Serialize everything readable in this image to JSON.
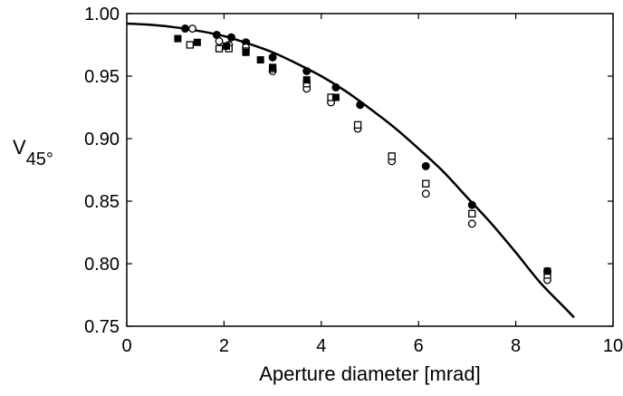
{
  "chart_data": {
    "type": "scatter",
    "xlabel": "Aperture diameter [mrad]",
    "ylabel_main": "V",
    "ylabel_sub": "45°",
    "xlim": [
      0,
      10
    ],
    "ylim": [
      0.75,
      1.0
    ],
    "x_ticks": [
      0,
      2,
      4,
      6,
      8,
      10
    ],
    "x_tick_labels": [
      "0",
      "2",
      "4",
      "6",
      "8",
      "10"
    ],
    "y_ticks": [
      0.75,
      0.8,
      0.85,
      0.9,
      0.95,
      1.0
    ],
    "y_tick_labels": [
      "0.75",
      "0.80",
      "0.85",
      "0.90",
      "0.95",
      "1.00"
    ],
    "grid": false,
    "colors": {
      "axes": "#000000",
      "marker": "#000000",
      "background": "#ffffff"
    },
    "curve": {
      "x": [
        0,
        0.5,
        1,
        1.5,
        2,
        2.5,
        3,
        3.5,
        4,
        4.5,
        5,
        5.5,
        6,
        6.5,
        7,
        7.5,
        8,
        8.5,
        9,
        9.2
      ],
      "y": [
        0.992,
        0.991,
        0.989,
        0.986,
        0.982,
        0.976,
        0.969,
        0.96,
        0.95,
        0.938,
        0.924,
        0.909,
        0.892,
        0.874,
        0.853,
        0.832,
        0.809,
        0.785,
        0.765,
        0.757
      ]
    },
    "series": [
      {
        "marker": "filled-circle",
        "x": [
          1.2,
          1.85,
          2.15,
          2.45,
          3.0,
          3.7,
          4.3,
          4.8,
          6.15,
          7.1,
          8.65
        ],
        "y": [
          0.988,
          0.983,
          0.981,
          0.977,
          0.965,
          0.954,
          0.941,
          0.927,
          0.878,
          0.847,
          0.794
        ]
      },
      {
        "marker": "open-circle",
        "x": [
          1.35,
          1.9,
          2.1,
          2.45,
          3.0,
          3.7,
          4.2,
          4.75,
          5.45,
          6.15,
          7.1,
          8.65
        ],
        "y": [
          0.988,
          0.978,
          0.975,
          0.973,
          0.954,
          0.94,
          0.929,
          0.908,
          0.882,
          0.856,
          0.832,
          0.787
        ]
      },
      {
        "marker": "open-square",
        "x": [
          1.3,
          1.9,
          2.1,
          2.45,
          3.0,
          3.7,
          4.2,
          4.75,
          5.45,
          6.15,
          7.1,
          8.65
        ],
        "y": [
          0.975,
          0.972,
          0.972,
          0.97,
          0.956,
          0.944,
          0.933,
          0.911,
          0.886,
          0.864,
          0.84,
          0.791
        ]
      },
      {
        "marker": "filled-square",
        "x": [
          1.05,
          1.45,
          2.05,
          2.45,
          2.75,
          3.0,
          3.7,
          4.3,
          8.65
        ],
        "y": [
          0.98,
          0.977,
          0.974,
          0.969,
          0.963,
          0.957,
          0.947,
          0.933,
          0.794
        ]
      }
    ]
  }
}
